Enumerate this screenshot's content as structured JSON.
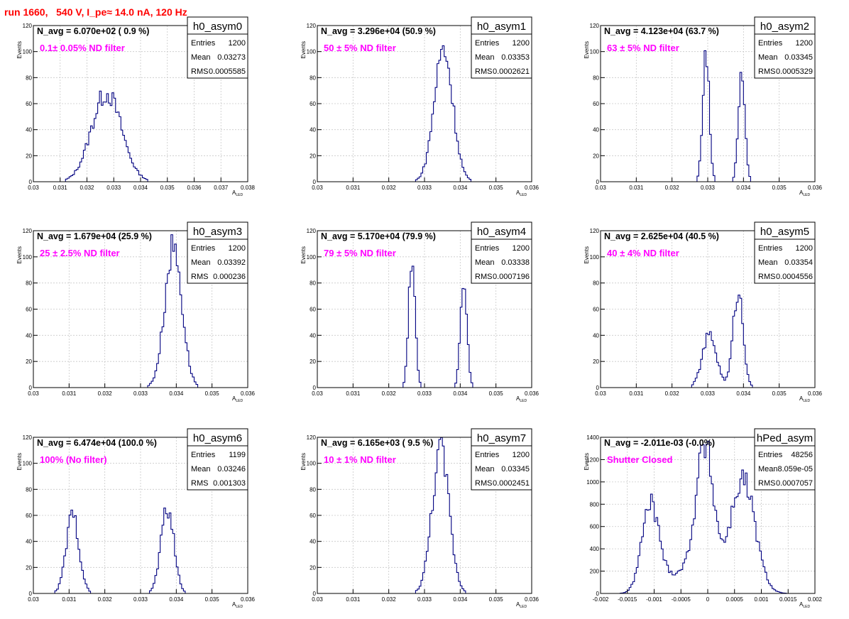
{
  "page": {
    "title": "run 1660,   540 V, I_pe≈ 14.0 nA, 120 Hz"
  },
  "colors": {
    "hist_line": "#000080",
    "annotation": "#ff00ff",
    "title": "#ff0000",
    "grid": "#c8c8c8"
  },
  "chart_data": [
    {
      "type": "histogram",
      "name": "h0_asym0",
      "nlabel": "N_avg = 6.070e+02 ( 0.9 %)",
      "note": "0.1± 0.05% ND filter",
      "stats": {
        "entries": "1200",
        "mean": "0.03273",
        "rms": "0.0005585"
      },
      "xlabel": "A",
      "xlabel_sub": "LED",
      "ylabel": "Events",
      "xlim": [
        0.03,
        0.038
      ],
      "ylim": [
        0,
        120
      ],
      "xticks": [
        "0.03",
        "0.031",
        "0.032",
        "0.033",
        "0.034",
        "0.035",
        "0.036",
        "0.037",
        "0.038"
      ],
      "yticks": [
        0,
        20,
        40,
        60,
        80,
        100,
        120
      ],
      "grid": true,
      "peaks": [
        {
          "mu": 0.03273,
          "sigma": 0.00056,
          "amp": 68
        }
      ]
    },
    {
      "type": "histogram",
      "name": "h0_asym1",
      "nlabel": "N_avg = 3.296e+04 (50.9 %)",
      "note": "50 ± 5% ND filter",
      "stats": {
        "entries": "1200",
        "mean": "0.03353",
        "rms": "0.0002621"
      },
      "xlabel": "A",
      "xlabel_sub": "LED",
      "ylabel": "Events",
      "xlim": [
        0.03,
        0.036
      ],
      "ylim": [
        0,
        120
      ],
      "xticks": [
        "0.03",
        "0.031",
        "0.032",
        "0.033",
        "0.034",
        "0.035",
        "0.036"
      ],
      "yticks": [
        0,
        20,
        40,
        60,
        80,
        100,
        120
      ],
      "grid": true,
      "peaks": [
        {
          "mu": 0.03353,
          "sigma": 0.00026,
          "amp": 102
        }
      ]
    },
    {
      "type": "histogram",
      "name": "h0_asym2",
      "nlabel": "N_avg = 4.123e+04 (63.7 %)",
      "note": "63 ± 5% ND filter",
      "stats": {
        "entries": "1200",
        "mean": "0.03345",
        "rms": "0.0005329"
      },
      "xlabel": "A",
      "xlabel_sub": "LED",
      "ylabel": "Events",
      "xlim": [
        0.03,
        0.036
      ],
      "ylim": [
        0,
        120
      ],
      "xticks": [
        "0.03",
        "0.031",
        "0.032",
        "0.033",
        "0.034",
        "0.035",
        "0.036"
      ],
      "yticks": [
        0,
        20,
        40,
        60,
        80,
        100,
        120
      ],
      "grid": true,
      "peaks": [
        {
          "mu": 0.03295,
          "sigma": 9e-05,
          "amp": 100
        },
        {
          "mu": 0.03395,
          "sigma": 9e-05,
          "amp": 88
        }
      ]
    },
    {
      "type": "histogram",
      "name": "h0_asym3",
      "nlabel": "N_avg = 1.679e+04 (25.9 %)",
      "note": "25 ± 2.5% ND filter",
      "stats": {
        "entries": "1200",
        "mean": "0.03392",
        "rms": "0.000236"
      },
      "xlabel": "A",
      "xlabel_sub": "LED",
      "ylabel": "Events",
      "xlim": [
        0.03,
        0.036
      ],
      "ylim": [
        0,
        120
      ],
      "xticks": [
        "0.03",
        "0.031",
        "0.032",
        "0.033",
        "0.034",
        "0.035",
        "0.036"
      ],
      "yticks": [
        0,
        20,
        40,
        60,
        80,
        100,
        120
      ],
      "grid": true,
      "peaks": [
        {
          "mu": 0.03392,
          "sigma": 0.00024,
          "amp": 108
        }
      ]
    },
    {
      "type": "histogram",
      "name": "h0_asym4",
      "nlabel": "N_avg = 5.170e+04 (79.9 %)",
      "note": "79 ± 5% ND filter",
      "stats": {
        "entries": "1200",
        "mean": "0.03338",
        "rms": "0.0007196"
      },
      "xlabel": "A",
      "xlabel_sub": "LED",
      "ylabel": "Events",
      "xlim": [
        0.03,
        0.036
      ],
      "ylim": [
        0,
        120
      ],
      "xticks": [
        "0.03",
        "0.031",
        "0.032",
        "0.033",
        "0.034",
        "0.035",
        "0.036"
      ],
      "yticks": [
        0,
        20,
        40,
        60,
        80,
        100,
        120
      ],
      "grid": true,
      "peaks": [
        {
          "mu": 0.03265,
          "sigma": 9e-05,
          "amp": 98
        },
        {
          "mu": 0.0341,
          "sigma": 9e-05,
          "amp": 84
        }
      ]
    },
    {
      "type": "histogram",
      "name": "h0_asym5",
      "nlabel": "N_avg = 2.625e+04 (40.5 %)",
      "note": "40 ± 4% ND filter",
      "stats": {
        "entries": "1200",
        "mean": "0.03354",
        "rms": "0.0004556"
      },
      "xlabel": "A",
      "xlabel_sub": "LED",
      "ylabel": "Events",
      "xlim": [
        0.03,
        0.036
      ],
      "ylim": [
        0,
        120
      ],
      "xticks": [
        "0.03",
        "0.031",
        "0.032",
        "0.033",
        "0.034",
        "0.035",
        "0.036"
      ],
      "yticks": [
        0,
        20,
        40,
        60,
        80,
        100,
        120
      ],
      "grid": true,
      "peaks": [
        {
          "mu": 0.03305,
          "sigma": 0.0002,
          "amp": 40
        },
        {
          "mu": 0.03385,
          "sigma": 0.00014,
          "amp": 74
        }
      ]
    },
    {
      "type": "histogram",
      "name": "h0_asym6",
      "nlabel": "N_avg = 6.474e+04 (100.0 %)",
      "note": "100% (No filter)",
      "stats": {
        "entries": "1199",
        "mean": "0.03246",
        "rms": "0.001303"
      },
      "xlabel": "A",
      "xlabel_sub": "LED",
      "ylabel": "Events",
      "xlim": [
        0.03,
        0.036
      ],
      "ylim": [
        0,
        120
      ],
      "xticks": [
        "0.03",
        "0.031",
        "0.032",
        "0.033",
        "0.034",
        "0.035",
        "0.036"
      ],
      "yticks": [
        0,
        20,
        40,
        60,
        80,
        100,
        120
      ],
      "grid": true,
      "peaks": [
        {
          "mu": 0.0311,
          "sigma": 0.00018,
          "amp": 60
        },
        {
          "mu": 0.03375,
          "sigma": 0.00018,
          "amp": 66
        }
      ]
    },
    {
      "type": "histogram",
      "name": "h0_asym7",
      "nlabel": "N_avg = 6.165e+03 ( 9.5 %)",
      "note": "10 ± 1% ND filter",
      "stats": {
        "entries": "1200",
        "mean": "0.03345",
        "rms": "0.0002451"
      },
      "xlabel": "A",
      "xlabel_sub": "LED",
      "ylabel": "Events",
      "xlim": [
        0.03,
        0.036
      ],
      "ylim": [
        0,
        120
      ],
      "xticks": [
        "0.03",
        "0.031",
        "0.032",
        "0.033",
        "0.034",
        "0.035",
        "0.036"
      ],
      "yticks": [
        0,
        20,
        40,
        60,
        80,
        100,
        120
      ],
      "grid": true,
      "peaks": [
        {
          "mu": 0.03345,
          "sigma": 0.00024,
          "amp": 110
        }
      ]
    },
    {
      "type": "histogram",
      "name": "hPed_asym",
      "nlabel": "N_avg = -2.011e-03 (-0.0%)",
      "note": "Shutter Closed",
      "stats": {
        "entries": "48256",
        "mean": "8.059e-05",
        "rms": "0.0007057"
      },
      "xlabel": "A",
      "xlabel_sub": "LED",
      "ylabel": "Events",
      "xlim": [
        -0.002,
        0.002
      ],
      "ylim": [
        0,
        1400
      ],
      "xticks": [
        "-0.002",
        "-0.0015",
        "-0.001",
        "-0.0005",
        "0",
        "0.0005",
        "0.001",
        "0.0015",
        "0.002"
      ],
      "yticks": [
        0,
        200,
        400,
        600,
        800,
        1000,
        1200,
        1400
      ],
      "grid": true,
      "peaks": [
        {
          "mu": -0.00107,
          "sigma": 0.00016,
          "amp": 780
        },
        {
          "mu": -5e-05,
          "sigma": 0.00017,
          "amp": 1250
        },
        {
          "mu": 0.00065,
          "sigma": 0.00023,
          "amp": 1020
        },
        {
          "mu": -0.0005,
          "sigma": 0.0003,
          "amp": 180
        }
      ]
    }
  ]
}
